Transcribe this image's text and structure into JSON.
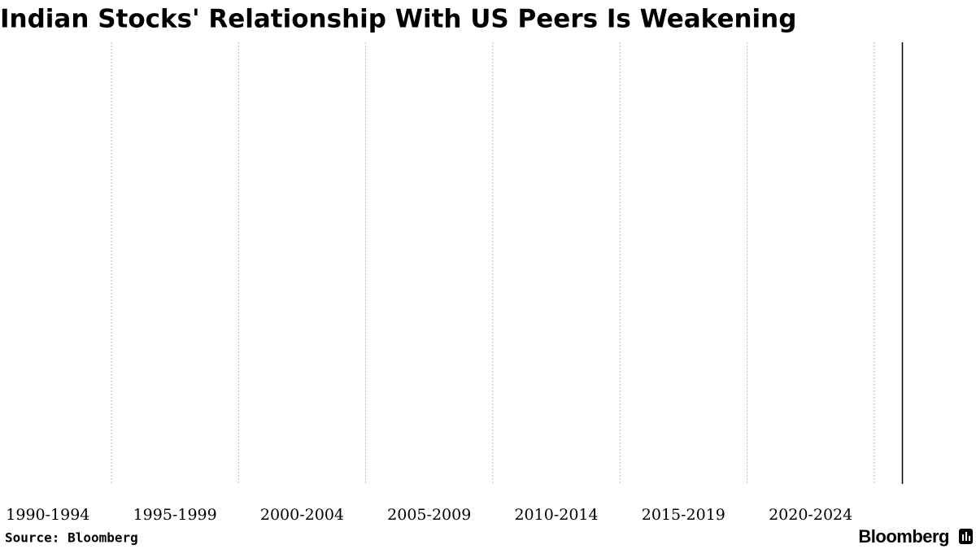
{
  "chart_data": {
    "type": "bar",
    "title": "Indian Stocks' Relationship With US Peers Is Weakening",
    "categories": [
      "1990-1994",
      "1995-1999",
      "2000-2004",
      "2005-2009",
      "2010-2014",
      "2015-2019",
      "2020-2024"
    ],
    "source": "Source: Bloomberg",
    "logo": "Bloomberg"
  }
}
